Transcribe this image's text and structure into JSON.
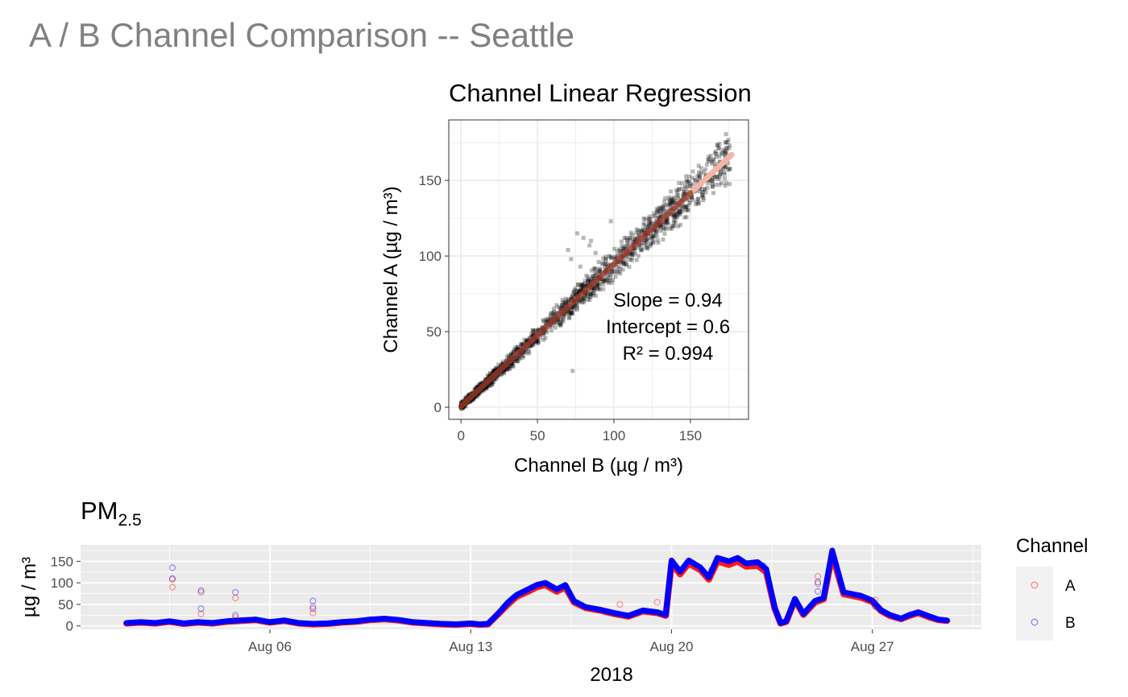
{
  "page": {
    "title": "A / B Channel Comparison -- Seattle"
  },
  "colors": {
    "title_gray": "#808080",
    "panel_bg": "#ebebeb",
    "grid_light": "#ebebeb",
    "channel_a": "#ff0000",
    "channel_b": "#0000ff",
    "fit_line": "#a03c2a",
    "fit_line_ext": "#f5b5a6",
    "scatter_point": "#000000",
    "legend_bg": "#f2f2f2"
  },
  "chart_data": [
    {
      "type": "scatter",
      "title": "Channel Linear Regression",
      "xlabel": "Channel B (µg / m³)",
      "ylabel": "Channel A (µg / m³)",
      "xlim": [
        -8,
        188
      ],
      "ylim": [
        -8,
        190
      ],
      "xticks": [
        0,
        50,
        100,
        150
      ],
      "yticks": [
        0,
        50,
        100,
        150
      ],
      "grid": true,
      "fit": {
        "slope": 0.94,
        "intercept": 0.6,
        "x_range": [
          0,
          177
        ]
      },
      "annotations": [
        "Slope = 0.94",
        "Intercept = 0.6",
        "R² = 0.994"
      ],
      "outliers": [
        [
          76,
          115
        ],
        [
          80,
          112
        ],
        [
          85,
          110
        ],
        [
          84,
          107
        ],
        [
          70,
          104
        ],
        [
          88,
          102
        ],
        [
          72,
          98
        ],
        [
          90,
          96
        ],
        [
          78,
          93
        ],
        [
          95,
          91
        ],
        [
          98,
          123
        ],
        [
          73,
          24
        ],
        [
          82,
          87
        ]
      ]
    },
    {
      "type": "line",
      "title": "PM",
      "title_subscript": "2.5",
      "xlabel": "2018",
      "ylabel": "µg / m³",
      "ylim": [
        -8,
        188
      ],
      "yticks": [
        0,
        50,
        100,
        150
      ],
      "xticks": [
        "Aug 06",
        "Aug 13",
        "Aug 20",
        "Aug 27"
      ],
      "xlim_days": [
        -1.6,
        29.8
      ],
      "xtick_days": [
        5,
        12,
        19,
        26
      ],
      "grid": true,
      "legend": {
        "title": "Channel",
        "position": "right",
        "entries": [
          "A",
          "B"
        ]
      },
      "series": [
        {
          "name": "A",
          "points": [
            [
              0.0,
              6
            ],
            [
              0.5,
              8
            ],
            [
              1.0,
              6
            ],
            [
              1.5,
              10
            ],
            [
              2.0,
              5
            ],
            [
              2.5,
              8
            ],
            [
              3.0,
              6
            ],
            [
              3.5,
              10
            ],
            [
              4.0,
              12
            ],
            [
              4.5,
              14
            ],
            [
              5.0,
              8
            ],
            [
              5.5,
              12
            ],
            [
              6.0,
              6
            ],
            [
              6.5,
              4
            ],
            [
              7.0,
              5
            ],
            [
              7.5,
              8
            ],
            [
              8.0,
              10
            ],
            [
              8.5,
              14
            ],
            [
              9.0,
              16
            ],
            [
              9.5,
              13
            ],
            [
              10.0,
              8
            ],
            [
              10.5,
              6
            ],
            [
              11.0,
              4
            ],
            [
              11.5,
              3
            ],
            [
              12.0,
              5
            ],
            [
              12.3,
              3
            ],
            [
              12.6,
              4
            ],
            [
              13.0,
              30
            ],
            [
              13.3,
              50
            ],
            [
              13.6,
              68
            ],
            [
              14.0,
              80
            ],
            [
              14.3,
              90
            ],
            [
              14.6,
              95
            ],
            [
              15.0,
              80
            ],
            [
              15.3,
              90
            ],
            [
              15.6,
              55
            ],
            [
              16.0,
              42
            ],
            [
              16.5,
              36
            ],
            [
              17.0,
              28
            ],
            [
              17.5,
              22
            ],
            [
              18.0,
              34
            ],
            [
              18.5,
              30
            ],
            [
              18.8,
              24
            ],
            [
              19.0,
              145
            ],
            [
              19.3,
              120
            ],
            [
              19.6,
              145
            ],
            [
              20.0,
              130
            ],
            [
              20.3,
              108
            ],
            [
              20.6,
              150
            ],
            [
              21.0,
              142
            ],
            [
              21.3,
              150
            ],
            [
              21.6,
              138
            ],
            [
              22.0,
              140
            ],
            [
              22.3,
              125
            ],
            [
              22.6,
              40
            ],
            [
              22.8,
              6
            ],
            [
              23.0,
              10
            ],
            [
              23.3,
              60
            ],
            [
              23.6,
              26
            ],
            [
              24.0,
              55
            ],
            [
              24.3,
              62
            ],
            [
              24.6,
              165
            ],
            [
              25.0,
              74
            ],
            [
              25.3,
              70
            ],
            [
              25.6,
              66
            ],
            [
              26.0,
              56
            ],
            [
              26.3,
              35
            ],
            [
              26.6,
              24
            ],
            [
              27.0,
              16
            ],
            [
              27.3,
              24
            ],
            [
              27.6,
              30
            ],
            [
              28.0,
              20
            ],
            [
              28.3,
              14
            ],
            [
              28.6,
              12
            ]
          ]
        },
        {
          "name": "B",
          "points": [
            [
              0.0,
              7
            ],
            [
              0.5,
              9
            ],
            [
              1.0,
              7
            ],
            [
              1.5,
              11
            ],
            [
              2.0,
              6
            ],
            [
              2.5,
              9
            ],
            [
              3.0,
              7
            ],
            [
              3.5,
              11
            ],
            [
              4.0,
              13
            ],
            [
              4.5,
              15
            ],
            [
              5.0,
              9
            ],
            [
              5.5,
              13
            ],
            [
              6.0,
              7
            ],
            [
              6.5,
              5
            ],
            [
              7.0,
              6
            ],
            [
              7.5,
              9
            ],
            [
              8.0,
              11
            ],
            [
              8.5,
              15
            ],
            [
              9.0,
              17
            ],
            [
              9.5,
              14
            ],
            [
              10.0,
              9
            ],
            [
              10.5,
              7
            ],
            [
              11.0,
              5
            ],
            [
              11.5,
              4
            ],
            [
              12.0,
              6
            ],
            [
              12.3,
              4
            ],
            [
              12.6,
              5
            ],
            [
              13.0,
              32
            ],
            [
              13.3,
              55
            ],
            [
              13.6,
              72
            ],
            [
              14.0,
              85
            ],
            [
              14.3,
              95
            ],
            [
              14.6,
              100
            ],
            [
              15.0,
              85
            ],
            [
              15.3,
              95
            ],
            [
              15.6,
              58
            ],
            [
              16.0,
              44
            ],
            [
              16.5,
              38
            ],
            [
              17.0,
              30
            ],
            [
              17.5,
              24
            ],
            [
              18.0,
              36
            ],
            [
              18.5,
              32
            ],
            [
              18.8,
              26
            ],
            [
              19.0,
              152
            ],
            [
              19.3,
              126
            ],
            [
              19.6,
              152
            ],
            [
              20.0,
              136
            ],
            [
              20.3,
              113
            ],
            [
              20.6,
              158
            ],
            [
              21.0,
              150
            ],
            [
              21.3,
              158
            ],
            [
              21.6,
              145
            ],
            [
              22.0,
              148
            ],
            [
              22.3,
              132
            ],
            [
              22.6,
              42
            ],
            [
              22.8,
              7
            ],
            [
              23.0,
              11
            ],
            [
              23.3,
              63
            ],
            [
              23.6,
              28
            ],
            [
              24.0,
              58
            ],
            [
              24.3,
              65
            ],
            [
              24.6,
              175
            ],
            [
              25.0,
              78
            ],
            [
              25.3,
              74
            ],
            [
              25.6,
              70
            ],
            [
              26.0,
              59
            ],
            [
              26.3,
              37
            ],
            [
              26.6,
              26
            ],
            [
              27.0,
              17
            ],
            [
              27.3,
              26
            ],
            [
              27.6,
              32
            ],
            [
              28.0,
              22
            ],
            [
              28.3,
              15
            ],
            [
              28.6,
              13
            ]
          ]
        }
      ],
      "outliers_a": [
        [
          1.6,
          90
        ],
        [
          1.6,
          108
        ],
        [
          2.6,
          28
        ],
        [
          2.6,
          78
        ],
        [
          3.8,
          65
        ],
        [
          3.8,
          20
        ],
        [
          6.5,
          45
        ],
        [
          6.5,
          30
        ],
        [
          24.1,
          115
        ],
        [
          24.1,
          98
        ],
        [
          17.2,
          50
        ],
        [
          18.5,
          55
        ],
        [
          26.1,
          60
        ]
      ],
      "outliers_b": [
        [
          1.6,
          135
        ],
        [
          1.6,
          110
        ],
        [
          2.6,
          82
        ],
        [
          2.6,
          40
        ],
        [
          3.8,
          78
        ],
        [
          3.8,
          25
        ],
        [
          6.5,
          58
        ],
        [
          6.5,
          40
        ],
        [
          24.1,
          102
        ],
        [
          24.1,
          80
        ],
        [
          20.4,
          130
        ],
        [
          22.2,
          140
        ],
        [
          26.1,
          45
        ]
      ]
    }
  ]
}
